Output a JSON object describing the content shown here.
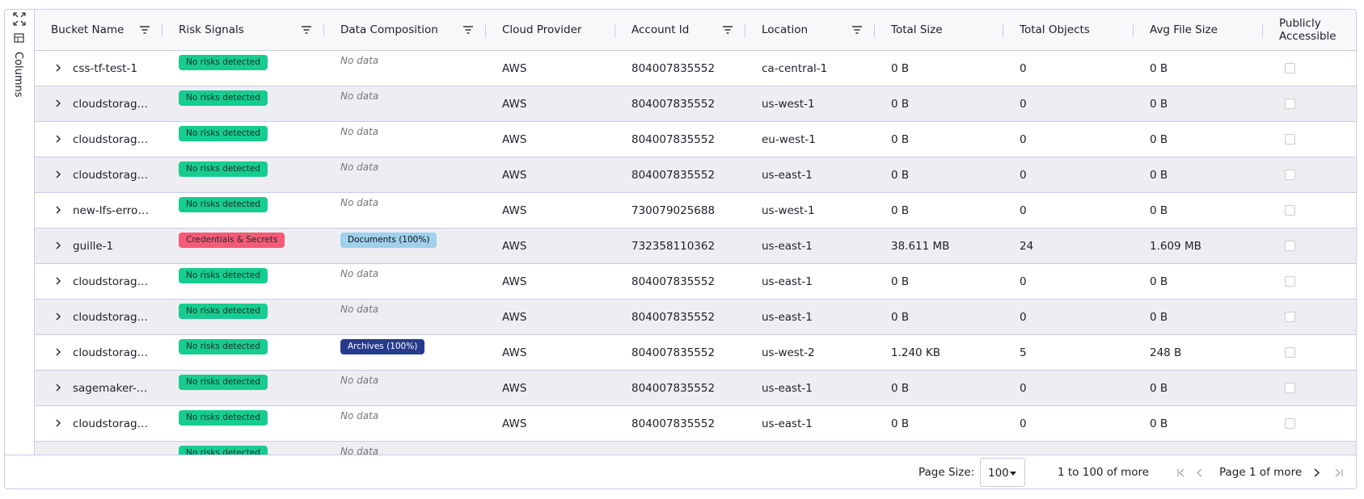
{
  "sidebar": {
    "label": "Columns"
  },
  "columns": [
    {
      "label": "Bucket Name",
      "filter": true
    },
    {
      "label": "Risk Signals",
      "filter": true
    },
    {
      "label": "Data Composition",
      "filter": true
    },
    {
      "label": "Cloud Provider",
      "filter": false
    },
    {
      "label": "Account Id",
      "filter": true
    },
    {
      "label": "Location",
      "filter": true
    },
    {
      "label": "Total Size",
      "filter": false
    },
    {
      "label": "Total Objects",
      "filter": false
    },
    {
      "label": "Avg File Size",
      "filter": false
    },
    {
      "label": "Publicly Accessible",
      "filter": false
    }
  ],
  "rows": [
    {
      "bucket": "css-tf-test-1",
      "risk": "No risks detected",
      "risk_color": "#17cc8f",
      "composition": "No data",
      "provider": "AWS",
      "account": "804007835552",
      "location": "ca-central-1",
      "total_size": "0 B",
      "total_objects": "0",
      "avg_size": "0 B"
    },
    {
      "bucket": "cloudstorag…",
      "risk": "No risks detected",
      "risk_color": "#17cc8f",
      "composition": "No data",
      "provider": "AWS",
      "account": "804007835552",
      "location": "us-west-1",
      "total_size": "0 B",
      "total_objects": "0",
      "avg_size": "0 B"
    },
    {
      "bucket": "cloudstorag…",
      "risk": "No risks detected",
      "risk_color": "#17cc8f",
      "composition": "No data",
      "provider": "AWS",
      "account": "804007835552",
      "location": "eu-west-1",
      "total_size": "0 B",
      "total_objects": "0",
      "avg_size": "0 B"
    },
    {
      "bucket": "cloudstorag…",
      "risk": "No risks detected",
      "risk_color": "#17cc8f",
      "composition": "No data",
      "provider": "AWS",
      "account": "804007835552",
      "location": "us-east-1",
      "total_size": "0 B",
      "total_objects": "0",
      "avg_size": "0 B"
    },
    {
      "bucket": "new-lfs-erro…",
      "risk": "No risks detected",
      "risk_color": "#17cc8f",
      "composition": "No data",
      "provider": "AWS",
      "account": "730079025688",
      "location": "us-west-1",
      "total_size": "0 B",
      "total_objects": "0",
      "avg_size": "0 B"
    },
    {
      "bucket": "guille-1",
      "risk": "Credentials & Secrets",
      "risk_color": "#f55a77",
      "composition": "Documents (100%)",
      "composition_color": "#9fd0ec",
      "provider": "AWS",
      "account": "732358110362",
      "location": "us-east-1",
      "total_size": "38.611 MB",
      "total_objects": "24",
      "avg_size": "1.609 MB"
    },
    {
      "bucket": "cloudstorag…",
      "risk": "No risks detected",
      "risk_color": "#17cc8f",
      "composition": "No data",
      "provider": "AWS",
      "account": "804007835552",
      "location": "us-east-1",
      "total_size": "0 B",
      "total_objects": "0",
      "avg_size": "0 B"
    },
    {
      "bucket": "cloudstorag…",
      "risk": "No risks detected",
      "risk_color": "#17cc8f",
      "composition": "No data",
      "provider": "AWS",
      "account": "804007835552",
      "location": "us-east-1",
      "total_size": "0 B",
      "total_objects": "0",
      "avg_size": "0 B"
    },
    {
      "bucket": "cloudstorag…",
      "risk": "No risks detected",
      "risk_color": "#17cc8f",
      "composition": "Archives (100%)",
      "composition_color": "#273a8c",
      "provider": "AWS",
      "account": "804007835552",
      "location": "us-west-2",
      "total_size": "1.240 KB",
      "total_objects": "5",
      "avg_size": "248 B"
    },
    {
      "bucket": "sagemaker-…",
      "risk": "No risks detected",
      "risk_color": "#17cc8f",
      "composition": "No data",
      "provider": "AWS",
      "account": "804007835552",
      "location": "us-east-1",
      "total_size": "0 B",
      "total_objects": "0",
      "avg_size": "0 B"
    },
    {
      "bucket": "cloudstorag…",
      "risk": "No risks detected",
      "risk_color": "#17cc8f",
      "composition": "No data",
      "provider": "AWS",
      "account": "804007835552",
      "location": "us-east-1",
      "total_size": "0 B",
      "total_objects": "0",
      "avg_size": "0 B"
    },
    {
      "risk": "No risks detected",
      "risk_color": "#17cc8f",
      "composition": "No data"
    }
  ],
  "footer": {
    "page_size_label": "Page Size:",
    "page_size": "100",
    "range": "1 to 100 of more",
    "page": "Page 1 of more"
  }
}
